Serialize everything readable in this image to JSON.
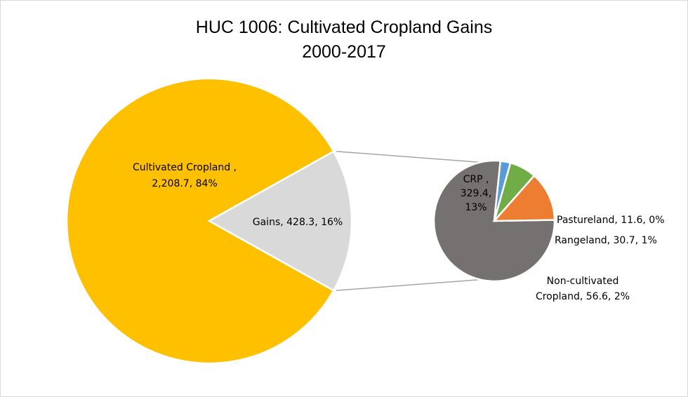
{
  "chart_data": {
    "type": "pie",
    "subtype": "pie-of-pie",
    "title": "HUC 1006: Cultivated Cropland Gains",
    "subtitle": "2000-2017",
    "main_pie": {
      "slices": [
        {
          "name": "Cultivated Cropland",
          "value": 2208.7,
          "percent": 84,
          "color": "#FFC000",
          "label_lines": [
            "Cultivated Cropland ,",
            "2,208.7, 84%"
          ]
        },
        {
          "name": "Gains",
          "value": 428.3,
          "percent": 16,
          "color": "#D9D9D9",
          "label_lines": [
            "Gains, 428.3, 16%"
          ]
        }
      ]
    },
    "secondary_pie": {
      "source_slice": "Gains",
      "slices": [
        {
          "name": "CRP",
          "value": 329.4,
          "percent": 13,
          "color": "#767171",
          "label_lines": [
            "CRP ,",
            "329.4,",
            "13%"
          ]
        },
        {
          "name": "Pastureland",
          "value": 11.6,
          "percent": 0,
          "color": "#5B9BD5",
          "label_lines": [
            "Pastureland, 11.6, 0%"
          ]
        },
        {
          "name": "Rangeland",
          "value": 30.7,
          "percent": 1,
          "color": "#70AD47",
          "label_lines": [
            "Rangeland, 30.7, 1%"
          ]
        },
        {
          "name": "Non-cultivated Cropland",
          "value": 56.6,
          "percent": 2,
          "color": "#ED7D31",
          "label_lines": [
            "Non-cultivated",
            "Cropland, 56.6, 2%"
          ]
        }
      ]
    },
    "connector_color": "#A6A6A6",
    "legend": "none",
    "grid": false
  }
}
